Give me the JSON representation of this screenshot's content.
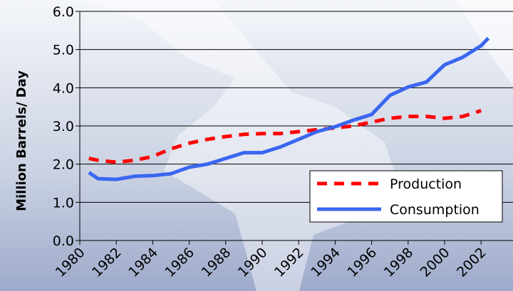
{
  "chart_data": {
    "type": "line",
    "y_label": "Million Barrels/ Day",
    "x": [
      1980.5,
      1981,
      1982,
      1983,
      1984,
      1985,
      1986,
      1987,
      1988,
      1989,
      1990,
      1991,
      1992,
      1993,
      1994,
      1995,
      1996,
      1997,
      1998,
      1999,
      2000,
      2001,
      2002,
      2002.4
    ],
    "series": [
      {
        "name": "Production",
        "color": "#ff0000",
        "dashed": true,
        "values": [
          2.15,
          2.1,
          2.05,
          2.1,
          2.2,
          2.4,
          2.55,
          2.65,
          2.72,
          2.78,
          2.8,
          2.8,
          2.85,
          2.9,
          2.95,
          3.0,
          3.1,
          3.2,
          3.25,
          3.25,
          3.2,
          3.25,
          3.4,
          null
        ]
      },
      {
        "name": "Consumption",
        "color": "#3a66f0",
        "dashed": false,
        "values": [
          1.78,
          1.62,
          1.6,
          1.68,
          1.7,
          1.75,
          1.92,
          2.0,
          2.15,
          2.3,
          2.3,
          2.45,
          2.65,
          2.85,
          2.98,
          3.15,
          3.3,
          3.8,
          4.02,
          4.15,
          4.6,
          4.8,
          5.1,
          5.3
        ]
      }
    ],
    "xlim": [
      1980,
      2003.75
    ],
    "xticks": [
      1980,
      1982,
      1984,
      1986,
      1988,
      1990,
      1992,
      1994,
      1996,
      1998,
      2000,
      2002
    ],
    "ylim": [
      0,
      6
    ],
    "yticks": [
      {
        "value": 0,
        "label": "0.0"
      },
      {
        "value": 1,
        "label": "1.0"
      },
      {
        "value": 2,
        "label": "2.0"
      },
      {
        "value": 3,
        "label": "3.0"
      },
      {
        "value": 4,
        "label": "4.0"
      },
      {
        "value": 5,
        "label": "5.0"
      },
      {
        "value": 6,
        "label": "6.0"
      }
    ],
    "grid": true,
    "legend": "lower right"
  }
}
